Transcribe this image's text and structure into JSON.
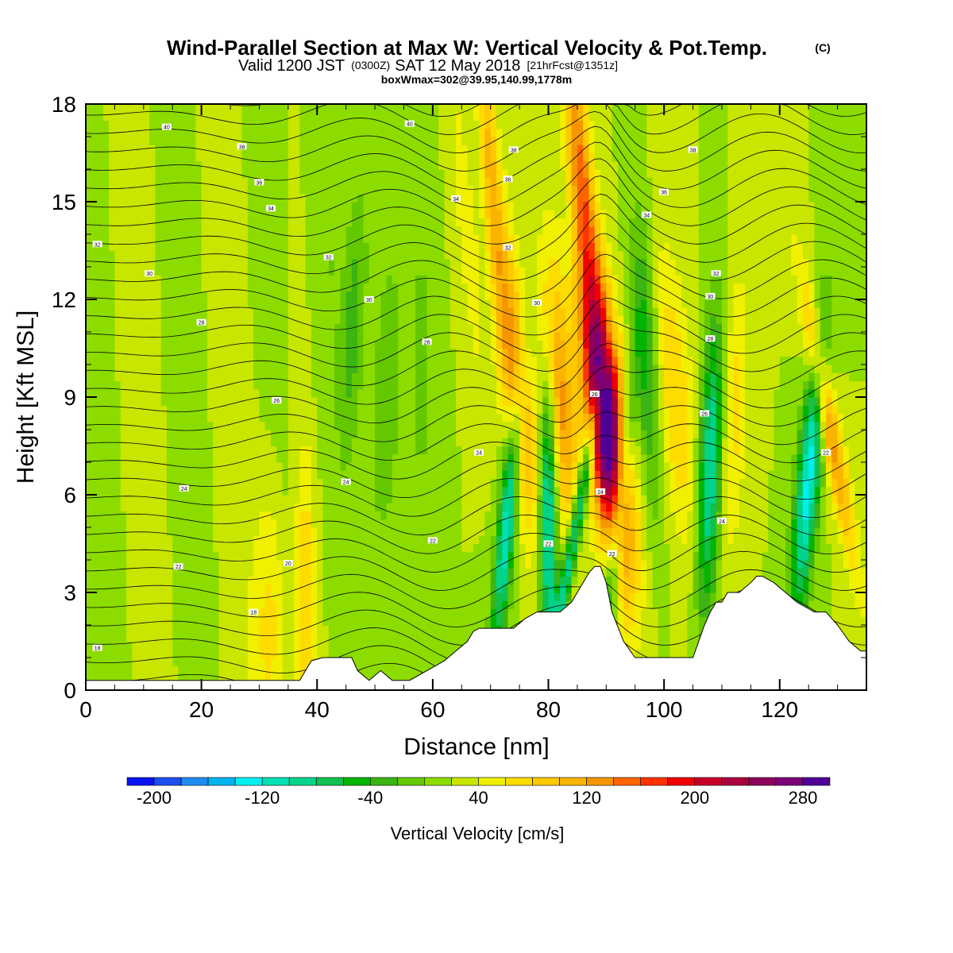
{
  "header": {
    "title": "Wind-Parallel Section at Max W: Vertical Velocity & Pot.Temp.",
    "title_mark": "(C)",
    "subtitle_a": "Valid 1200 JST",
    "subtitle_b": "(0300Z)",
    "subtitle_c": "SAT 12 May 2018",
    "subtitle_d": "[21hrFcst@1351z]",
    "subtitle_e": "boxWmax=302@39.95,140.99,1778m"
  },
  "chart_data": {
    "type": "heatmap",
    "xlabel": "Distance [nm]",
    "ylabel": "Height [Kft MSL]",
    "xlim": [
      0,
      135
    ],
    "ylim": [
      0,
      18
    ],
    "x_ticks": [
      "0",
      "20",
      "40",
      "60",
      "80",
      "100",
      "120"
    ],
    "x_tick_values": [
      0,
      20,
      40,
      60,
      80,
      100,
      120
    ],
    "y_ticks": [
      "0",
      "3",
      "6",
      "9",
      "12",
      "15",
      "18"
    ],
    "y_tick_values": [
      0,
      3,
      6,
      9,
      12,
      15,
      18
    ],
    "colorbar": {
      "label": "Vertical Velocity [cm/s]",
      "tick_labels": [
        "-200",
        "-120",
        "-40",
        "40",
        "120",
        "200",
        "280"
      ],
      "tick_values": [
        -200,
        -120,
        -40,
        40,
        120,
        200,
        280
      ],
      "levels_min": -220,
      "levels_max": 300,
      "levels_step": 20,
      "colors": [
        "#0a14f2",
        "#1e50f0",
        "#1e8cf0",
        "#00b4f0",
        "#00f0f0",
        "#00e0b4",
        "#00d38a",
        "#10c050",
        "#00b400",
        "#3cb414",
        "#64c800",
        "#8cdc00",
        "#c8e600",
        "#f0f000",
        "#ffdc00",
        "#ffc800",
        "#fab400",
        "#f59600",
        "#ff6400",
        "#ff3200",
        "#f00000",
        "#c80028",
        "#aa003c",
        "#8c005a",
        "#7d0078",
        "#500096"
      ]
    },
    "terrain_profile_x": [
      0,
      37,
      38,
      39,
      41,
      46,
      47,
      49,
      51,
      53,
      56,
      59,
      62,
      64,
      66,
      67,
      68,
      70,
      72,
      74,
      76,
      78,
      80,
      82,
      84,
      85,
      86,
      87,
      88,
      89,
      90,
      91,
      93,
      95,
      97,
      99,
      101,
      103,
      105,
      106,
      107,
      108,
      109,
      110,
      111,
      113,
      115,
      116,
      117,
      119,
      121,
      123,
      125,
      126,
      127,
      128,
      130,
      132,
      134,
      135
    ],
    "terrain_profile_y": [
      0.3,
      0.3,
      0.6,
      0.9,
      1.0,
      1.0,
      0.6,
      0.3,
      0.6,
      0.3,
      0.3,
      0.6,
      0.9,
      1.2,
      1.5,
      1.8,
      1.9,
      1.9,
      1.9,
      1.9,
      2.2,
      2.4,
      2.4,
      2.4,
      2.7,
      3.0,
      3.3,
      3.6,
      3.8,
      3.8,
      3.3,
      2.4,
      1.5,
      1.0,
      1.0,
      1.0,
      1.0,
      1.0,
      1.0,
      1.5,
      2.0,
      2.4,
      2.7,
      2.7,
      3.0,
      3.0,
      3.3,
      3.5,
      3.5,
      3.3,
      3.0,
      2.7,
      2.5,
      2.4,
      2.4,
      2.4,
      2.0,
      1.5,
      1.2,
      1.2
    ],
    "theta_contour_labels": [
      {
        "text": "40",
        "x": 14,
        "y": 17.3
      },
      {
        "text": "38",
        "x": 27,
        "y": 16.7
      },
      {
        "text": "36",
        "x": 30,
        "y": 15.6
      },
      {
        "text": "34",
        "x": 32,
        "y": 14.8
      },
      {
        "text": "32",
        "x": 2,
        "y": 13.7
      },
      {
        "text": "32",
        "x": 42,
        "y": 13.3
      },
      {
        "text": "30",
        "x": 11,
        "y": 12.8
      },
      {
        "text": "30",
        "x": 49,
        "y": 12.0
      },
      {
        "text": "28",
        "x": 20,
        "y": 11.3
      },
      {
        "text": "28",
        "x": 59,
        "y": 10.7
      },
      {
        "text": "26",
        "x": 33,
        "y": 8.9
      },
      {
        "text": "24",
        "x": 17,
        "y": 6.2
      },
      {
        "text": "24",
        "x": 45,
        "y": 6.4
      },
      {
        "text": "22",
        "x": 16,
        "y": 3.8
      },
      {
        "text": "22",
        "x": 60,
        "y": 4.6
      },
      {
        "text": "20",
        "x": 35,
        "y": 3.9
      },
      {
        "text": "18",
        "x": 29,
        "y": 2.4
      },
      {
        "text": "18",
        "x": 2,
        "y": 1.3
      },
      {
        "text": "40",
        "x": 56,
        "y": 17.4
      },
      {
        "text": "38",
        "x": 74,
        "y": 16.6
      },
      {
        "text": "36",
        "x": 73,
        "y": 15.7
      },
      {
        "text": "34",
        "x": 64,
        "y": 15.1
      },
      {
        "text": "36",
        "x": 100,
        "y": 15.3
      },
      {
        "text": "38",
        "x": 105,
        "y": 16.6
      },
      {
        "text": "34",
        "x": 97,
        "y": 14.6
      },
      {
        "text": "32",
        "x": 73,
        "y": 13.6
      },
      {
        "text": "30",
        "x": 78,
        "y": 11.9
      },
      {
        "text": "32",
        "x": 109,
        "y": 12.8
      },
      {
        "text": "30",
        "x": 108,
        "y": 12.1
      },
      {
        "text": "28",
        "x": 108,
        "y": 10.8
      },
      {
        "text": "26",
        "x": 88,
        "y": 9.1
      },
      {
        "text": "26",
        "x": 107,
        "y": 8.5
      },
      {
        "text": "24",
        "x": 68,
        "y": 7.3
      },
      {
        "text": "24",
        "x": 89,
        "y": 6.1
      },
      {
        "text": "24",
        "x": 110,
        "y": 5.2
      },
      {
        "text": "22",
        "x": 80,
        "y": 4.5
      },
      {
        "text": "22",
        "x": 91,
        "y": 4.2
      },
      {
        "text": "22",
        "x": 128,
        "y": 7.3
      }
    ],
    "grid": false
  }
}
